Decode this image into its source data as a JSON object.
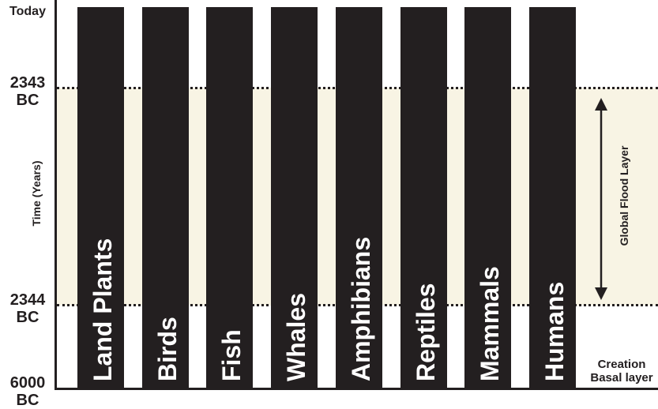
{
  "axis": {
    "title": "Time (Years)",
    "ticks": [
      {
        "line1": "Today",
        "line2": ""
      },
      {
        "line1": "2343",
        "line2": "BC"
      },
      {
        "line1": "2344",
        "line2": "BC"
      },
      {
        "line1": "6000",
        "line2": "BC"
      }
    ]
  },
  "columns": [
    "Land Plants",
    "Birds",
    "Fish",
    "Whales",
    "Amphibians",
    "Reptiles",
    "Mammals",
    "Humans"
  ],
  "flood_layer": {
    "label": "Global Flood Layer"
  },
  "creation": {
    "line1": "Creation",
    "line2": "Basal layer"
  },
  "colors": {
    "ink": "#231f20",
    "flood_band": "#f8f4e4",
    "background": "#ffffff"
  },
  "icons": {
    "flood_range": "double-headed-vertical-arrow-icon"
  }
}
